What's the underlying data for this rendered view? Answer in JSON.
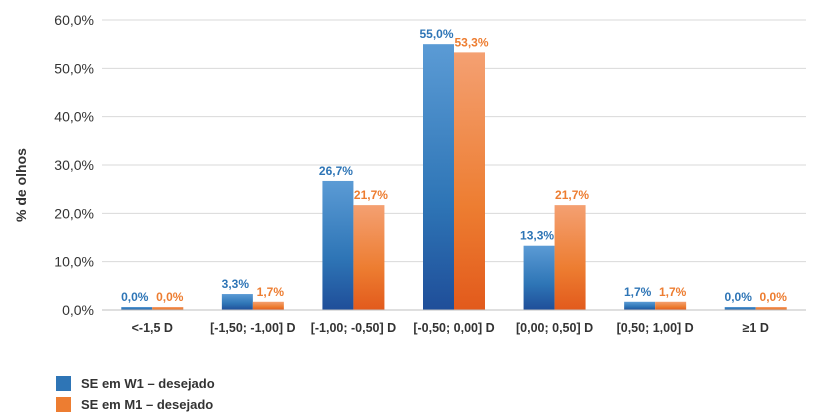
{
  "chart_data": {
    "type": "bar",
    "ylabel": "% de olhos",
    "ylim": [
      0,
      60
    ],
    "yticks": [
      "0,0%",
      "10,0%",
      "20,0%",
      "30,0%",
      "40,0%",
      "50,0%",
      "60,0%"
    ],
    "categories": [
      "<-1,5 D",
      "[-1,50; -1,00] D",
      "[-1,00; -0,50] D",
      "[-0,50; 0,00] D",
      "[0,00; 0,50] D",
      "[0,50; 1,00] D",
      "≥1 D"
    ],
    "series": [
      {
        "name": "SE em W1 – desejado",
        "color": "#2E75B6",
        "values": [
          0.0,
          3.3,
          26.7,
          55.0,
          13.3,
          1.7,
          0.0
        ],
        "labels": [
          "0,0%",
          "3,3%",
          "26,7%",
          "55,0%",
          "13,3%",
          "1,7%",
          "0,0%"
        ]
      },
      {
        "name": "SE em M1 – desejado",
        "color": "#ED7D31",
        "values": [
          0.0,
          1.7,
          21.7,
          53.3,
          21.7,
          1.7,
          0.0
        ],
        "labels": [
          "0,0%",
          "1,7%",
          "21,7%",
          "53,3%",
          "21,7%",
          "1,7%",
          "0,0%"
        ]
      }
    ],
    "grid": true,
    "legend_position": "bottom-left"
  }
}
